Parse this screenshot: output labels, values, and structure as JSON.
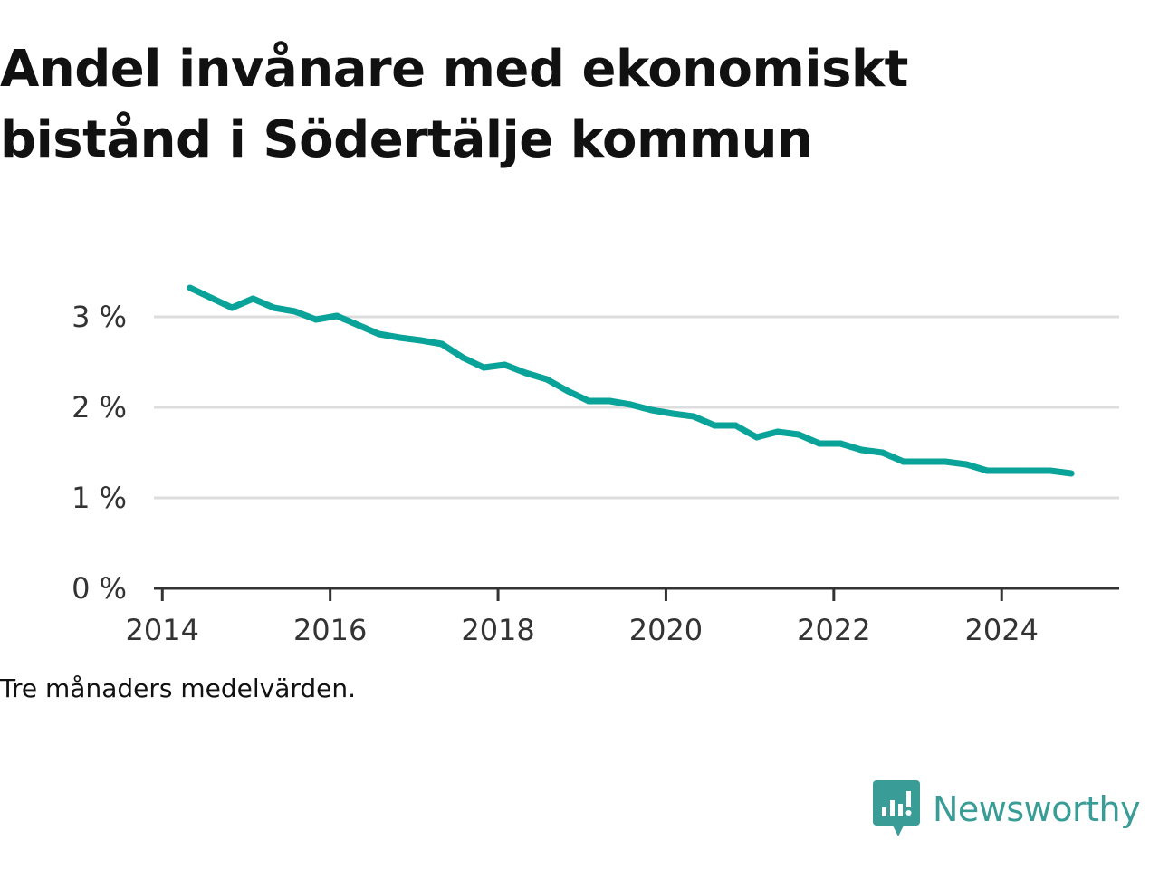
{
  "title": "Andel invånare med ekonomiskt bistånd i Södertälje kommun",
  "note": "Tre månaders medelvärden.",
  "brand": {
    "name": "Newsworthy",
    "icon": "newsworthy-logo-icon",
    "color": "#3a9c96"
  },
  "colors": {
    "line": "#0aa399",
    "grid": "#dddddd",
    "axis": "#333333"
  },
  "chart_data": {
    "type": "line",
    "title": "Andel invånare med ekonomiskt bistånd i Södertälje kommun",
    "xlabel": "",
    "ylabel": "",
    "xlim": [
      2013.9,
      2025.4
    ],
    "ylim": [
      0,
      3.6
    ],
    "x_ticks": [
      2014,
      2016,
      2018,
      2020,
      2022,
      2024
    ],
    "x_tick_labels": [
      "2014",
      "2016",
      "2018",
      "2020",
      "2022",
      "2024"
    ],
    "y_ticks": [
      0,
      1,
      2,
      3
    ],
    "y_tick_labels": [
      "0 %",
      "1 %",
      "2 %",
      "3 %"
    ],
    "grid": true,
    "series": [
      {
        "values": [
          [
            2014.33,
            3.32
          ],
          [
            2014.58,
            3.21
          ],
          [
            2014.83,
            3.1
          ],
          [
            2015.08,
            3.2
          ],
          [
            2015.33,
            3.1
          ],
          [
            2015.58,
            3.06
          ],
          [
            2015.83,
            2.97
          ],
          [
            2016.08,
            3.01
          ],
          [
            2016.33,
            2.91
          ],
          [
            2016.58,
            2.81
          ],
          [
            2016.83,
            2.77
          ],
          [
            2017.08,
            2.74
          ],
          [
            2017.33,
            2.7
          ],
          [
            2017.58,
            2.55
          ],
          [
            2017.83,
            2.44
          ],
          [
            2018.08,
            2.47
          ],
          [
            2018.33,
            2.38
          ],
          [
            2018.58,
            2.31
          ],
          [
            2018.83,
            2.18
          ],
          [
            2019.08,
            2.07
          ],
          [
            2019.33,
            2.07
          ],
          [
            2019.58,
            2.03
          ],
          [
            2019.83,
            1.97
          ],
          [
            2020.08,
            1.93
          ],
          [
            2020.33,
            1.9
          ],
          [
            2020.58,
            1.8
          ],
          [
            2020.83,
            1.8
          ],
          [
            2021.08,
            1.67
          ],
          [
            2021.33,
            1.73
          ],
          [
            2021.58,
            1.7
          ],
          [
            2021.83,
            1.6
          ],
          [
            2022.08,
            1.6
          ],
          [
            2022.33,
            1.53
          ],
          [
            2022.58,
            1.5
          ],
          [
            2022.83,
            1.4
          ],
          [
            2023.08,
            1.4
          ],
          [
            2023.33,
            1.4
          ],
          [
            2023.58,
            1.37
          ],
          [
            2023.83,
            1.3
          ],
          [
            2024.08,
            1.3
          ],
          [
            2024.33,
            1.3
          ],
          [
            2024.58,
            1.3
          ],
          [
            2024.83,
            1.27
          ]
        ]
      }
    ]
  }
}
